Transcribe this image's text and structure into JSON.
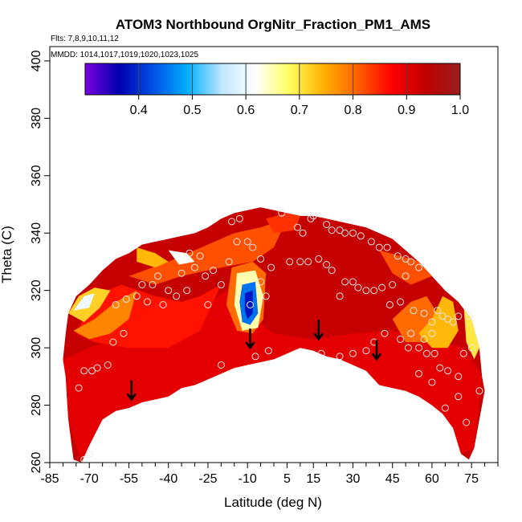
{
  "chart_data": {
    "type": "heatmap",
    "title": "ATOM3 Northbound OrgNitr_Fraction_PM1_AMS",
    "subtitle_lines": [
      "Flts: 7,8,9,10,11,12",
      "MMDD: 1014,1017,1019,1020,1023,1025"
    ],
    "xlabel": "Latitude (deg N)",
    "ylabel": "Theta (C)",
    "xlim": [
      -85,
      85
    ],
    "ylim": [
      260,
      405
    ],
    "x_ticks": [
      -85,
      -70,
      -55,
      -40,
      -25,
      -10,
      5,
      15,
      30,
      45,
      60,
      75
    ],
    "y_ticks": [
      260,
      280,
      300,
      320,
      340,
      360,
      380,
      400
    ],
    "colorbar": {
      "range": [
        0.3,
        1.0
      ],
      "ticks": [
        "0.4",
        "0.5",
        "0.6",
        "0.7",
        "0.8",
        "0.9",
        "1.0"
      ],
      "tick_values": [
        0.4,
        0.5,
        0.6,
        0.7,
        0.8,
        0.9,
        1.0
      ],
      "colors": [
        "#7b00e0",
        "#0000b0",
        "#0050e6",
        "#00b0ff",
        "#bfe6ff",
        "#ffffff",
        "#ffff60",
        "#ffb000",
        "#ff6000",
        "#ff0000",
        "#c00000",
        "#9a1f1f"
      ]
    },
    "arrows": [
      {
        "lat": -54,
        "theta": 282
      },
      {
        "lat": -9,
        "theta": 300
      },
      {
        "lat": 17,
        "theta": 303
      },
      {
        "lat": 39,
        "theta": 296
      }
    ],
    "field_outline": {
      "top": [
        [
          -78,
          312
        ],
        [
          -75,
          318
        ],
        [
          -70,
          322
        ],
        [
          -65,
          327
        ],
        [
          -60,
          331
        ],
        [
          -55,
          333
        ],
        [
          -50,
          336
        ],
        [
          -45,
          337
        ],
        [
          -40,
          338
        ],
        [
          -35,
          339
        ],
        [
          -30,
          340
        ],
        [
          -25,
          342
        ],
        [
          -20,
          345
        ],
        [
          -15,
          347
        ],
        [
          -10,
          348
        ],
        [
          -5,
          349
        ],
        [
          0,
          348
        ],
        [
          5,
          347
        ],
        [
          10,
          346
        ],
        [
          15,
          346
        ],
        [
          20,
          345
        ],
        [
          25,
          344
        ],
        [
          30,
          343
        ],
        [
          35,
          342
        ],
        [
          40,
          340
        ],
        [
          45,
          338
        ],
        [
          50,
          334
        ],
        [
          55,
          330
        ],
        [
          60,
          325
        ],
        [
          65,
          320
        ],
        [
          70,
          316
        ],
        [
          75,
          310
        ],
        [
          78,
          300
        ],
        [
          79,
          290
        ],
        [
          80,
          285
        ]
      ],
      "bottom": [
        [
          80,
          285
        ],
        [
          78,
          275
        ],
        [
          76,
          265
        ],
        [
          74,
          261
        ],
        [
          71,
          263
        ],
        [
          68,
          272
        ],
        [
          64,
          277
        ],
        [
          60,
          280
        ],
        [
          55,
          283
        ],
        [
          50,
          285
        ],
        [
          45,
          286
        ],
        [
          40,
          287
        ],
        [
          35,
          292
        ],
        [
          30,
          294
        ],
        [
          25,
          296
        ],
        [
          20,
          297
        ],
        [
          15,
          299
        ],
        [
          10,
          300
        ],
        [
          5,
          298
        ],
        [
          0,
          296
        ],
        [
          -5,
          295
        ],
        [
          -10,
          294
        ],
        [
          -15,
          293
        ],
        [
          -20,
          291
        ],
        [
          -25,
          289
        ],
        [
          -30,
          287
        ],
        [
          -35,
          286
        ],
        [
          -40,
          283
        ],
        [
          -45,
          282
        ],
        [
          -50,
          281
        ],
        [
          -55,
          279
        ],
        [
          -60,
          278
        ],
        [
          -65,
          275
        ],
        [
          -70,
          266
        ],
        [
          -73,
          260
        ],
        [
          -76,
          261
        ],
        [
          -78,
          275
        ],
        [
          -79,
          290
        ],
        [
          -80,
          296
        ],
        [
          -79,
          305
        ],
        [
          -78,
          312
        ]
      ]
    },
    "regions": [
      {
        "value": 0.9,
        "poly": [
          [
            -80,
            296
          ],
          [
            -70,
            300
          ],
          [
            -55,
            305
          ],
          [
            -40,
            308
          ],
          [
            -30,
            312
          ],
          [
            -18,
            320
          ],
          [
            -10,
            312
          ],
          [
            0,
            305
          ],
          [
            15,
            303
          ],
          [
            30,
            305
          ],
          [
            45,
            306
          ],
          [
            60,
            303
          ],
          [
            72,
            300
          ],
          [
            79,
            290
          ],
          [
            76,
            265
          ],
          [
            71,
            263
          ],
          [
            60,
            280
          ],
          [
            40,
            287
          ],
          [
            15,
            299
          ],
          [
            -10,
            294
          ],
          [
            -40,
            283
          ],
          [
            -60,
            278
          ],
          [
            -73,
            260
          ],
          [
            -78,
            275
          ]
        ]
      },
      {
        "value": 0.86,
        "poly": [
          [
            -68,
            318
          ],
          [
            -58,
            322
          ],
          [
            -45,
            318
          ],
          [
            -35,
            316
          ],
          [
            -28,
            318
          ],
          [
            -20,
            322
          ],
          [
            -28,
            306
          ],
          [
            -40,
            300
          ],
          [
            -55,
            300
          ],
          [
            -68,
            302
          ],
          [
            -75,
            305
          ]
        ]
      },
      {
        "value": 0.82,
        "poly": [
          [
            -55,
            325
          ],
          [
            -40,
            330
          ],
          [
            -25,
            336
          ],
          [
            -15,
            340
          ],
          [
            -5,
            342
          ],
          [
            5,
            345
          ],
          [
            0,
            335
          ],
          [
            -8,
            330
          ],
          [
            -20,
            328
          ],
          [
            -35,
            325
          ],
          [
            -45,
            322
          ]
        ]
      },
      {
        "value": 0.78,
        "poly": [
          [
            -76,
            306
          ],
          [
            -68,
            310
          ],
          [
            -60,
            316
          ],
          [
            -52,
            320
          ],
          [
            -55,
            310
          ],
          [
            -62,
            305
          ],
          [
            -70,
            303
          ]
        ]
      },
      {
        "value": 0.72,
        "poly": [
          [
            -78,
            312
          ],
          [
            -74,
            318
          ],
          [
            -68,
            321
          ],
          [
            -62,
            320
          ],
          [
            -66,
            314
          ],
          [
            -72,
            309
          ]
        ]
      },
      {
        "value": 0.6,
        "poly": [
          [
            -76,
            313
          ],
          [
            -72,
            318
          ],
          [
            -68,
            319
          ],
          [
            -70,
            314
          ]
        ]
      },
      {
        "value": 0.74,
        "poly": [
          [
            -52,
            335
          ],
          [
            -45,
            333
          ],
          [
            -40,
            330
          ],
          [
            -45,
            328
          ],
          [
            -52,
            330
          ]
        ]
      },
      {
        "value": 0.62,
        "poly": [
          [
            -40,
            334
          ],
          [
            -33,
            333
          ],
          [
            -30,
            330
          ],
          [
            -36,
            329
          ]
        ]
      },
      {
        "value": 0.8,
        "poly": [
          [
            -16,
            328
          ],
          [
            -8,
            330
          ],
          [
            -3,
            326
          ],
          [
            -4,
            310
          ],
          [
            -8,
            305
          ],
          [
            -14,
            306
          ],
          [
            -18,
            315
          ]
        ]
      },
      {
        "value": 0.65,
        "poly": [
          [
            -14,
            326
          ],
          [
            -7,
            327
          ],
          [
            -4,
            318
          ],
          [
            -6,
            307
          ],
          [
            -12,
            306
          ],
          [
            -15,
            315
          ]
        ]
      },
      {
        "value": 0.45,
        "poly": [
          [
            -12,
            322
          ],
          [
            -7,
            323
          ],
          [
            -6,
            312
          ],
          [
            -9,
            308
          ],
          [
            -12,
            309
          ],
          [
            -13,
            316
          ]
        ]
      },
      {
        "value": 0.38,
        "poly": [
          [
            -11,
            319
          ],
          [
            -8,
            320
          ],
          [
            -8,
            312
          ],
          [
            -10,
            310
          ],
          [
            -11,
            313
          ]
        ]
      },
      {
        "value": 0.82,
        "poly": [
          [
            40,
            334
          ],
          [
            48,
            332
          ],
          [
            56,
            330
          ],
          [
            60,
            325
          ],
          [
            52,
            322
          ],
          [
            45,
            326
          ]
        ]
      },
      {
        "value": 0.8,
        "poly": [
          [
            45,
            310
          ],
          [
            52,
            316
          ],
          [
            58,
            318
          ],
          [
            62,
            312
          ],
          [
            58,
            302
          ],
          [
            50,
            302
          ]
        ]
      },
      {
        "value": 0.74,
        "poly": [
          [
            55,
            305
          ],
          [
            60,
            310
          ],
          [
            64,
            318
          ],
          [
            68,
            316
          ],
          [
            70,
            306
          ],
          [
            66,
            300
          ],
          [
            60,
            300
          ]
        ]
      },
      {
        "value": 0.7,
        "poly": [
          [
            72,
            315
          ],
          [
            76,
            310
          ],
          [
            78,
            300
          ],
          [
            76,
            296
          ],
          [
            73,
            302
          ]
        ]
      },
      {
        "value": 0.84,
        "poly": [
          [
            -3,
            345
          ],
          [
            5,
            347
          ],
          [
            10,
            346
          ],
          [
            8,
            341
          ],
          [
            0,
            340
          ]
        ]
      }
    ],
    "points": [
      [
        -74,
        286
      ],
      [
        -72,
        261
      ],
      [
        -70,
        263
      ],
      [
        -72,
        292
      ],
      [
        -69,
        292
      ],
      [
        -67,
        293
      ],
      [
        -63,
        294
      ],
      [
        -61,
        302
      ],
      [
        -57,
        305
      ],
      [
        -60,
        315
      ],
      [
        -56,
        317
      ],
      [
        -52,
        318
      ],
      [
        -50,
        322
      ],
      [
        -46,
        322
      ],
      [
        -44,
        325
      ],
      [
        -48,
        316
      ],
      [
        -42,
        315
      ],
      [
        -40,
        320
      ],
      [
        -37,
        318
      ],
      [
        -33,
        320
      ],
      [
        -35,
        326
      ],
      [
        -30,
        328
      ],
      [
        -28,
        332
      ],
      [
        -32,
        333
      ],
      [
        -26,
        325
      ],
      [
        -23,
        327
      ],
      [
        -20,
        322
      ],
      [
        -25,
        315
      ],
      [
        -17,
        330
      ],
      [
        -14,
        337
      ],
      [
        -10,
        337
      ],
      [
        -16,
        344
      ],
      [
        -13,
        345
      ],
      [
        -8,
        335
      ],
      [
        -5,
        331
      ],
      [
        -1,
        328
      ],
      [
        -3,
        318
      ],
      [
        -9,
        315
      ],
      [
        -5,
        323
      ],
      [
        -20,
        294
      ],
      [
        -7,
        297
      ],
      [
        -2,
        299
      ],
      [
        3,
        347
      ],
      [
        9,
        342
      ],
      [
        11,
        340
      ],
      [
        14,
        345
      ],
      [
        15,
        346
      ],
      [
        20,
        343
      ],
      [
        22,
        341
      ],
      [
        25,
        341
      ],
      [
        27,
        340
      ],
      [
        30,
        340
      ],
      [
        33,
        339
      ],
      [
        37,
        337
      ],
      [
        40,
        335
      ],
      [
        43,
        335
      ],
      [
        47,
        332
      ],
      [
        50,
        331
      ],
      [
        52,
        330
      ],
      [
        55,
        328
      ],
      [
        50,
        325
      ],
      [
        45,
        322
      ],
      [
        41,
        321
      ],
      [
        38,
        320
      ],
      [
        32,
        321
      ],
      [
        27,
        323
      ],
      [
        22,
        327
      ],
      [
        20,
        329
      ],
      [
        17,
        331
      ],
      [
        13,
        330
      ],
      [
        10,
        330
      ],
      [
        6,
        330
      ],
      [
        25,
        318
      ],
      [
        30,
        323
      ],
      [
        35,
        320
      ],
      [
        44,
        315
      ],
      [
        48,
        316
      ],
      [
        53,
        313
      ],
      [
        57,
        312
      ],
      [
        60,
        309
      ],
      [
        62,
        313
      ],
      [
        64,
        311
      ],
      [
        66,
        310
      ],
      [
        68,
        309
      ],
      [
        70,
        311
      ],
      [
        60,
        305
      ],
      [
        57,
        303
      ],
      [
        55,
        300
      ],
      [
        51,
        300
      ],
      [
        48,
        303
      ],
      [
        52,
        305
      ],
      [
        58,
        298
      ],
      [
        61,
        298
      ],
      [
        63,
        293
      ],
      [
        66,
        292
      ],
      [
        70,
        290
      ],
      [
        72,
        298
      ],
      [
        75,
        300
      ],
      [
        74,
        311
      ],
      [
        73,
        274
      ],
      [
        65,
        279
      ],
      [
        60,
        288
      ],
      [
        55,
        291
      ],
      [
        70,
        283
      ],
      [
        78,
        285
      ],
      [
        42,
        305
      ],
      [
        38,
        302
      ],
      [
        35,
        299
      ],
      [
        30,
        298
      ],
      [
        25,
        297
      ],
      [
        18,
        298
      ]
    ]
  }
}
